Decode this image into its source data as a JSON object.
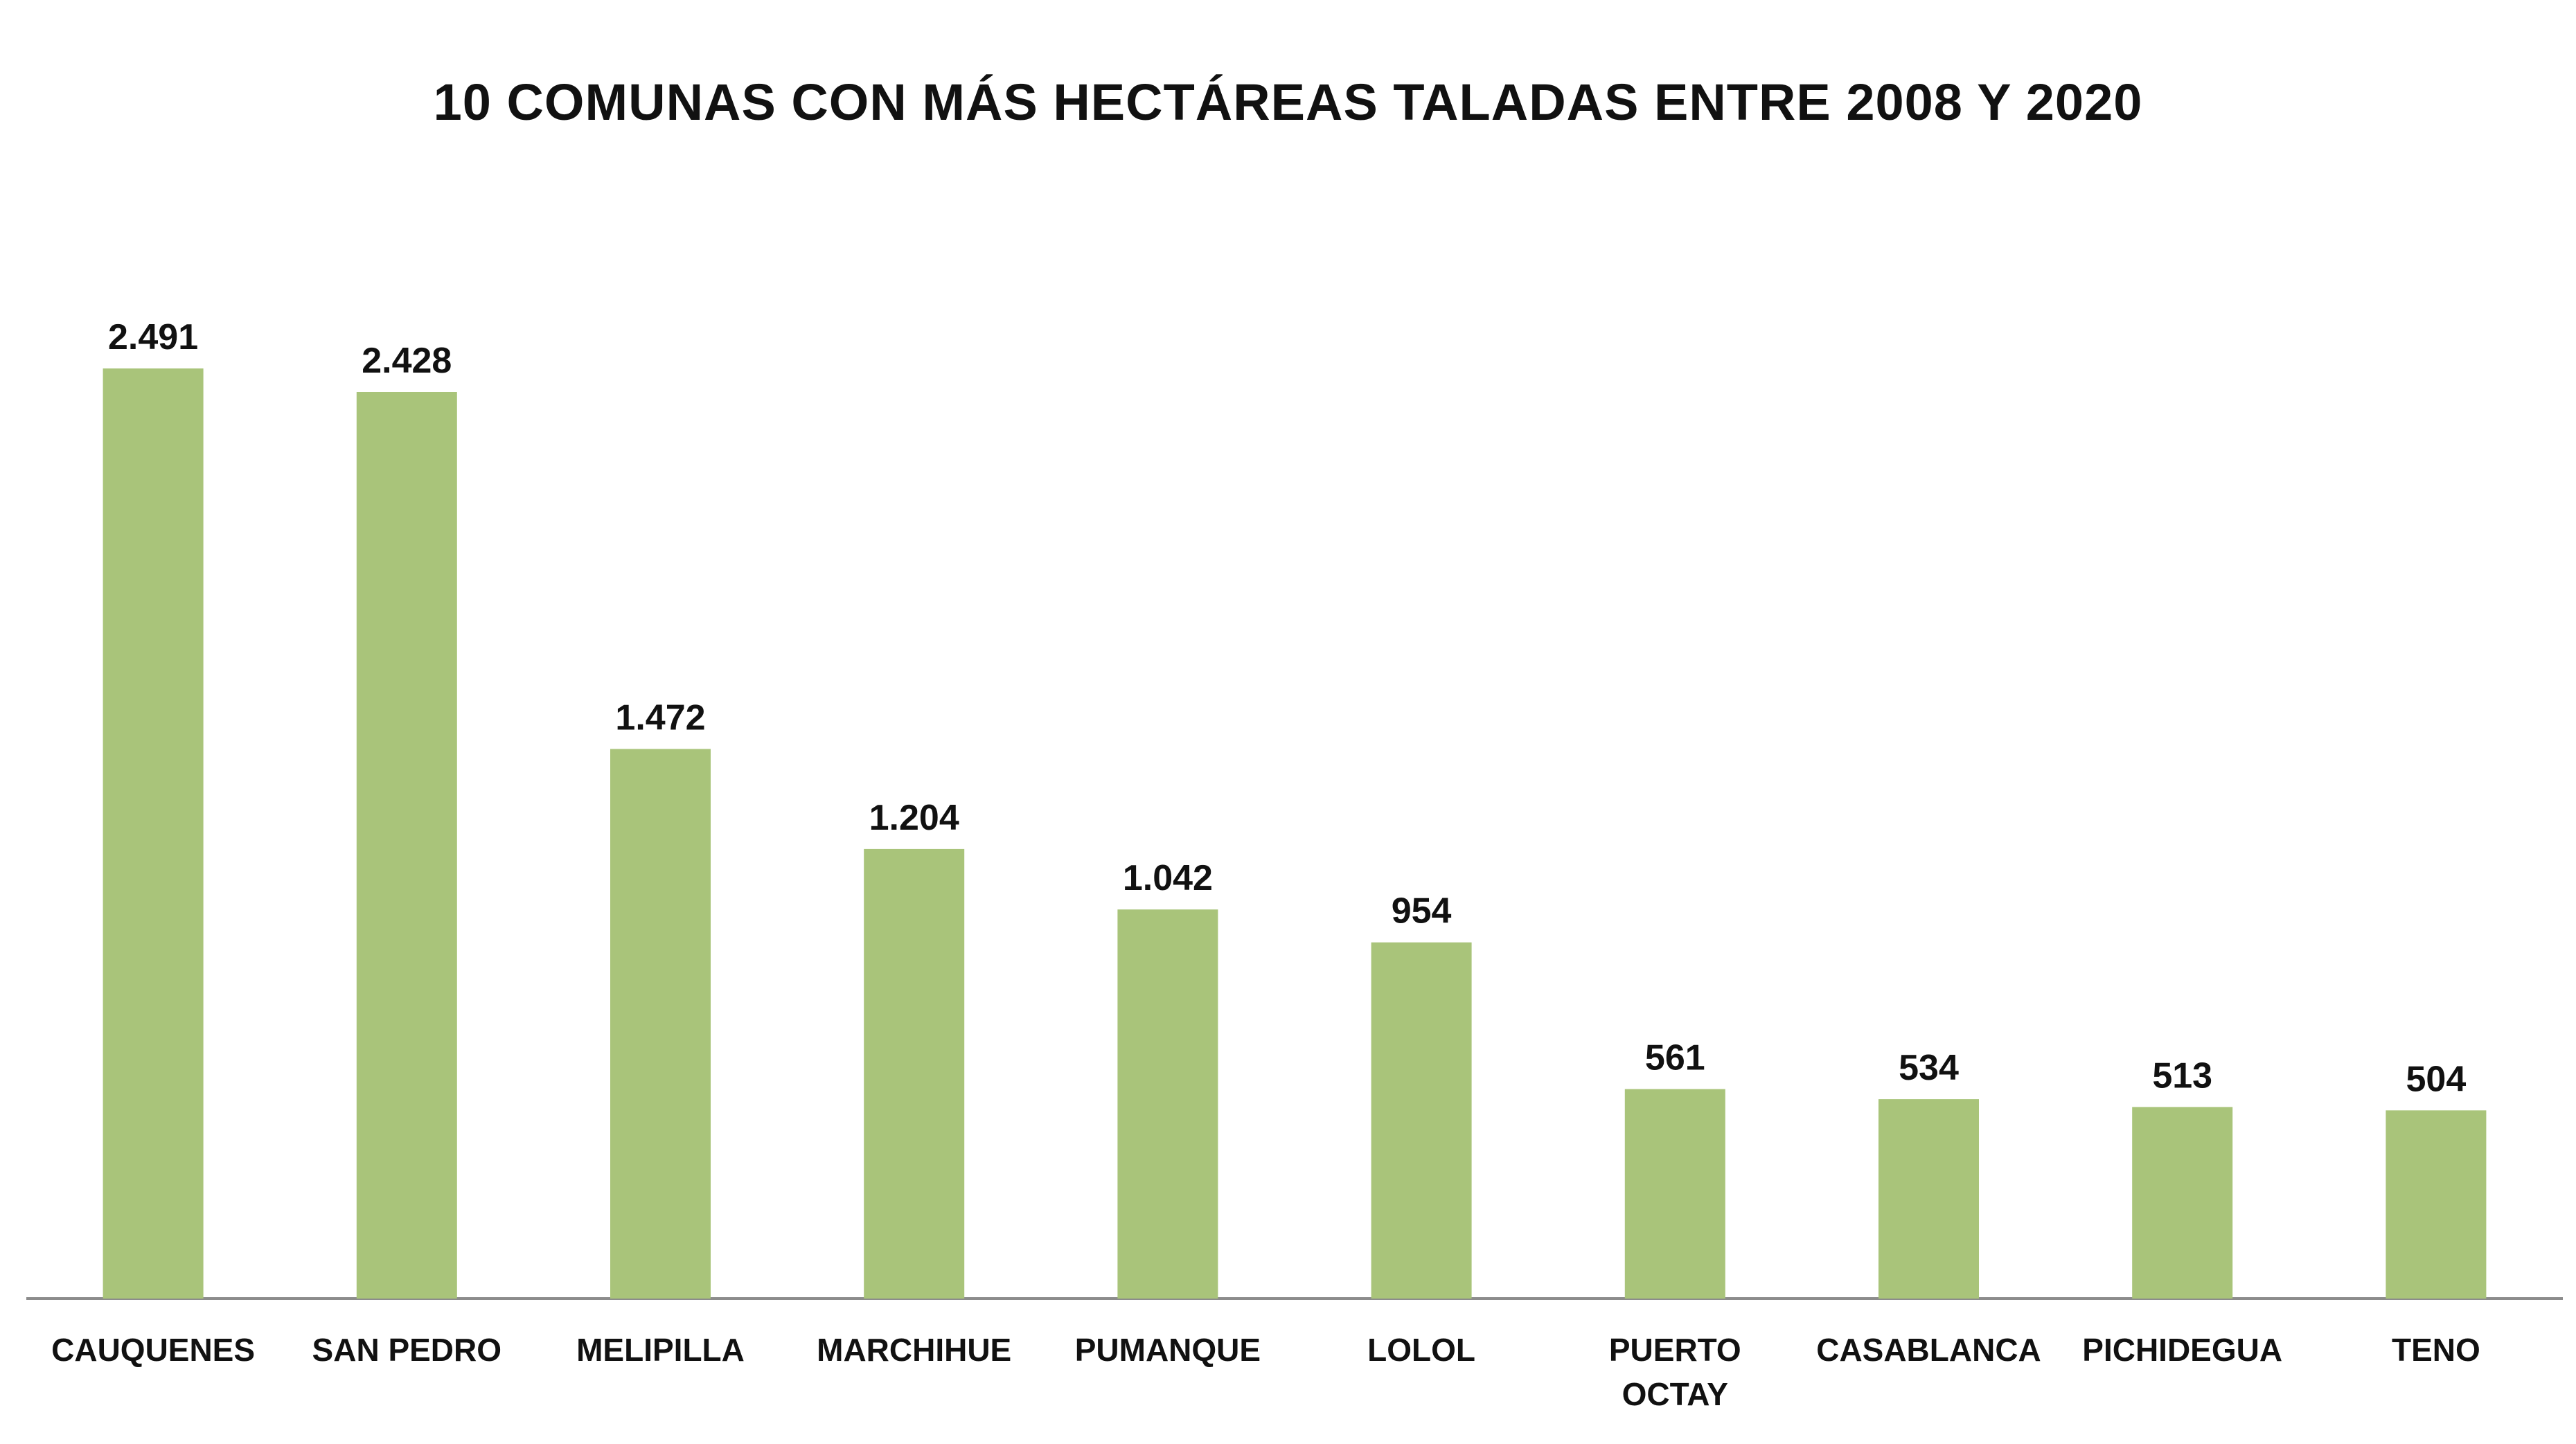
{
  "chart_data": {
    "type": "bar",
    "title": "10 COMUNAS CON MÁS HECTÁREAS TALADAS ENTRE 2008 Y 2020",
    "categories": [
      "CAUQUENES",
      "SAN PEDRO",
      "MELIPILLA",
      "MARCHIHUE",
      "PUMANQUE",
      "LOLOL",
      "PUERTO OCTAY",
      "CASABLANCA",
      "PICHIDEGUA",
      "TENO"
    ],
    "category_lines": [
      [
        "CAUQUENES"
      ],
      [
        "SAN PEDRO"
      ],
      [
        "MELIPILLA"
      ],
      [
        "MARCHIHUE"
      ],
      [
        "PUMANQUE"
      ],
      [
        "LOLOL"
      ],
      [
        "PUERTO",
        "OCTAY"
      ],
      [
        "CASABLANCA"
      ],
      [
        "PICHIDEGUA"
      ],
      [
        "TENO"
      ]
    ],
    "values": [
      2491,
      2428,
      1472,
      1204,
      1042,
      954,
      561,
      534,
      513,
      504
    ],
    "value_labels": [
      "2.491",
      "2.428",
      "1.472",
      "1.204",
      "1.042",
      "954",
      "561",
      "534",
      "513",
      "504"
    ],
    "xlabel": "",
    "ylabel": "",
    "ylim": [
      0,
      2491
    ],
    "grid": false,
    "bar_color": "#a9c47a",
    "axis_color": "#8c8c8c"
  }
}
